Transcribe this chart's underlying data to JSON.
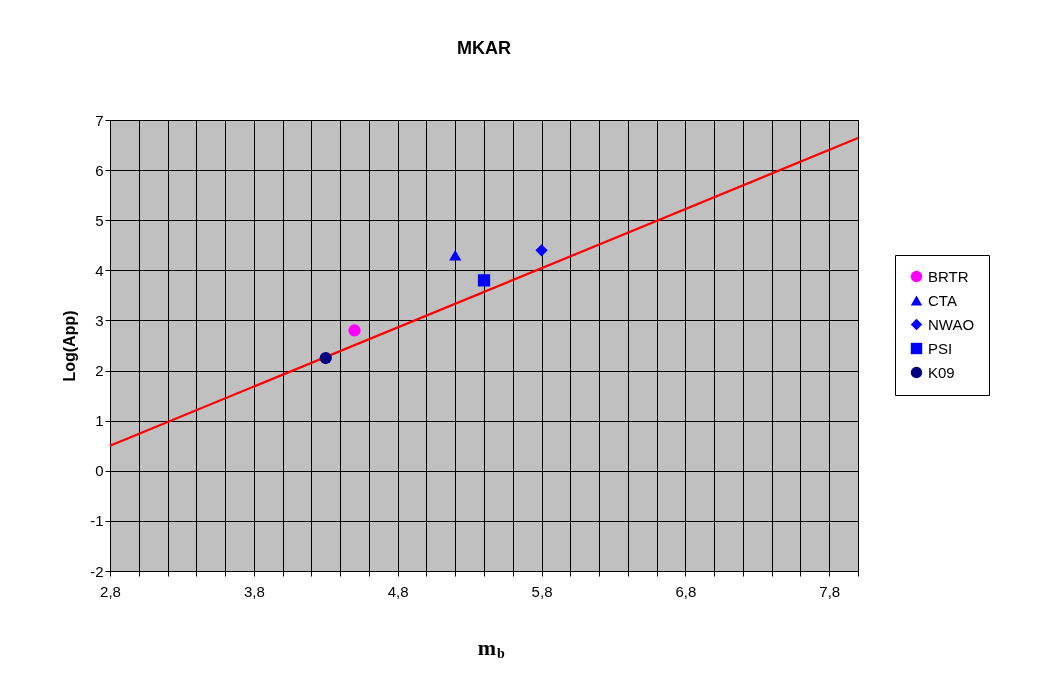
{
  "chart_data": {
    "type": "scatter",
    "title": "MKAR",
    "xlabel": "m$_{b}$",
    "ylabel": "Log(App)",
    "xlim": [
      2.8,
      8.0
    ],
    "ylim": [
      -2,
      7
    ],
    "xticks": [
      {
        "value": 2.8,
        "label": "2,8"
      },
      {
        "value": 3.0,
        "label": null
      },
      {
        "value": 3.2,
        "label": null
      },
      {
        "value": 3.4,
        "label": null
      },
      {
        "value": 3.6,
        "label": null
      },
      {
        "value": 3.8,
        "label": "3,8"
      },
      {
        "value": 4.0,
        "label": null
      },
      {
        "value": 4.2,
        "label": null
      },
      {
        "value": 4.4,
        "label": null
      },
      {
        "value": 4.6,
        "label": null
      },
      {
        "value": 4.8,
        "label": "4,8"
      },
      {
        "value": 5.0,
        "label": null
      },
      {
        "value": 5.2,
        "label": null
      },
      {
        "value": 5.4,
        "label": null
      },
      {
        "value": 5.6,
        "label": null
      },
      {
        "value": 5.8,
        "label": "5,8"
      },
      {
        "value": 6.0,
        "label": null
      },
      {
        "value": 6.2,
        "label": null
      },
      {
        "value": 6.4,
        "label": null
      },
      {
        "value": 6.6,
        "label": null
      },
      {
        "value": 6.8,
        "label": "6,8"
      },
      {
        "value": 7.0,
        "label": null
      },
      {
        "value": 7.2,
        "label": null
      },
      {
        "value": 7.4,
        "label": null
      },
      {
        "value": 7.6,
        "label": null
      },
      {
        "value": 7.8,
        "label": "7,8"
      },
      {
        "value": 8.0,
        "label": null
      }
    ],
    "yticks": [
      -2,
      -1,
      0,
      1,
      2,
      3,
      4,
      5,
      6,
      7
    ],
    "grid": true,
    "legend": "right",
    "series": [
      {
        "name": "BRTR",
        "color": "#ff00ff",
        "marker": "circle",
        "x": [
          4.5
        ],
        "values": [
          2.8
        ]
      },
      {
        "name": "CTA",
        "color": "#0000ff",
        "marker": "triangle",
        "x": [
          5.2
        ],
        "values": [
          4.3
        ]
      },
      {
        "name": "NWAO",
        "color": "#0000ff",
        "marker": "diamond",
        "x": [
          5.8
        ],
        "values": [
          4.4
        ]
      },
      {
        "name": "PSI",
        "color": "#0000ff",
        "marker": "square",
        "x": [
          5.4
        ],
        "values": [
          3.8
        ]
      },
      {
        "name": "K09",
        "color": "#000080",
        "marker": "circle",
        "x": [
          4.3
        ],
        "values": [
          2.25
        ]
      },
      {
        "type": "line",
        "color": "#ff0000",
        "line_style": "solid",
        "x": [
          2.8,
          8.0
        ],
        "values": [
          0.5,
          6.64
        ]
      }
    ]
  }
}
